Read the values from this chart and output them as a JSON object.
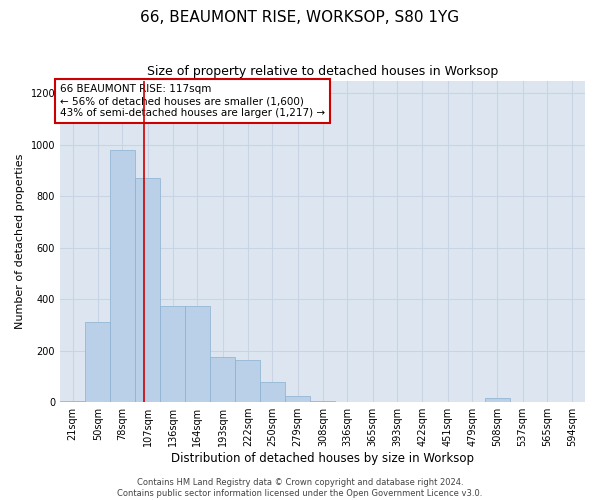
{
  "title": "66, BEAUMONT RISE, WORKSOP, S80 1YG",
  "subtitle": "Size of property relative to detached houses in Worksop",
  "xlabel": "Distribution of detached houses by size in Worksop",
  "ylabel": "Number of detached properties",
  "bins": [
    21,
    50,
    78,
    107,
    136,
    164,
    193,
    222,
    250,
    279,
    308,
    336,
    365,
    393,
    422,
    451,
    479,
    508,
    537,
    565,
    594
  ],
  "values": [
    5,
    310,
    980,
    870,
    375,
    375,
    175,
    165,
    80,
    25,
    5,
    0,
    0,
    0,
    0,
    0,
    0,
    15,
    0,
    0,
    0
  ],
  "bar_color": "#bad0e8",
  "bar_edge_color": "#8ab0d0",
  "bar_linewidth": 0.5,
  "grid_color": "#c8d4e4",
  "background_color": "#dde6f0",
  "vline_x": 117,
  "vline_color": "#cc0000",
  "ylim": [
    0,
    1250
  ],
  "yticks": [
    0,
    200,
    400,
    600,
    800,
    1000,
    1200
  ],
  "annotation_text": "66 BEAUMONT RISE: 117sqm\n← 56% of detached houses are smaller (1,600)\n43% of semi-detached houses are larger (1,217) →",
  "annotation_box_color": "#cc0000",
  "footer": "Contains HM Land Registry data © Crown copyright and database right 2024.\nContains public sector information licensed under the Open Government Licence v3.0.",
  "title_fontsize": 11,
  "subtitle_fontsize": 9,
  "xlabel_fontsize": 8.5,
  "ylabel_fontsize": 8,
  "tick_fontsize": 7,
  "footer_fontsize": 6,
  "annotation_fontsize": 7.5
}
